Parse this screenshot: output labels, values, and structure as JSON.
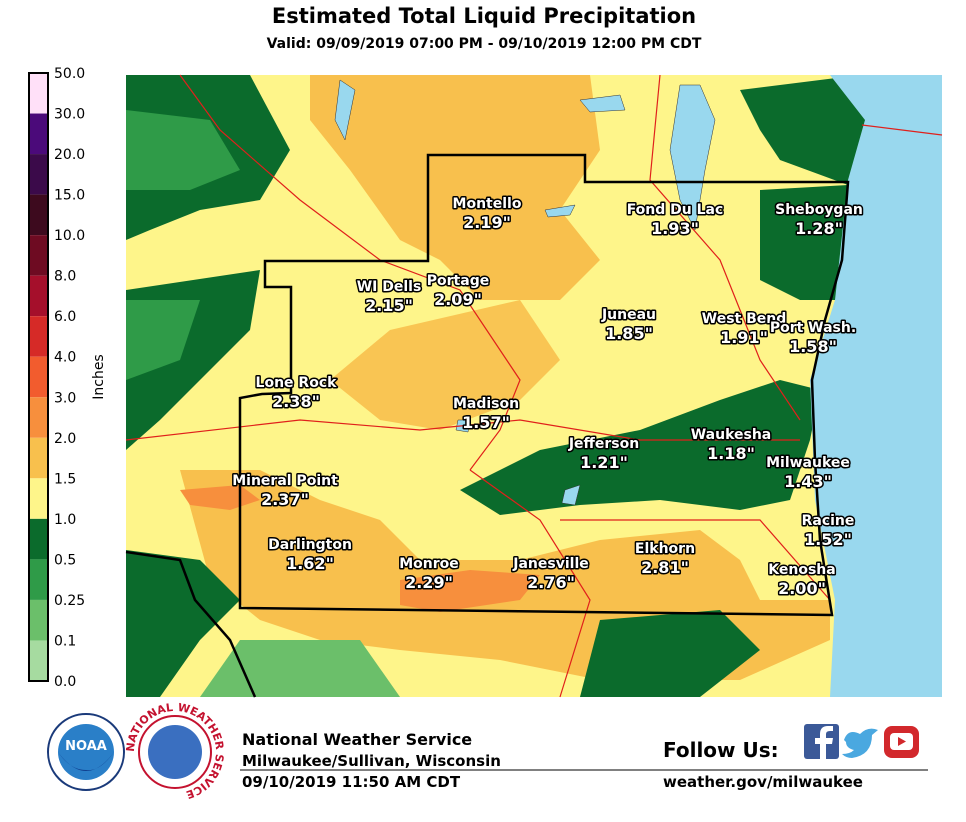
{
  "header": {
    "title": "Estimated Total Liquid Precipitation",
    "subtitle": "Valid: 09/09/2019 07:00 PM - 09/10/2019 12:00 PM CDT"
  },
  "legend": {
    "title": "Inches",
    "labels": [
      "50.0",
      "30.0",
      "20.0",
      "15.0",
      "10.0",
      "8.0",
      "6.0",
      "4.0",
      "3.0",
      "2.0",
      "1.5",
      "1.0",
      "0.5",
      "0.25",
      "0.1",
      "0.0"
    ]
  },
  "cities": [
    {
      "name": "Montello",
      "amount": "2.19\""
    },
    {
      "name": "Fond Du Lac",
      "amount": "1.93\""
    },
    {
      "name": "Sheboygan",
      "amount": "1.28\""
    },
    {
      "name": "WI Dells",
      "amount": "2.15\""
    },
    {
      "name": "Portage",
      "amount": "2.09\""
    },
    {
      "name": "Juneau",
      "amount": "1.85\""
    },
    {
      "name": "West Bend",
      "amount": "1.91\""
    },
    {
      "name": "Port Wash.",
      "amount": "1.58\""
    },
    {
      "name": "Lone Rock",
      "amount": "2.38\""
    },
    {
      "name": "Madison",
      "amount": "1.57\""
    },
    {
      "name": "Jefferson",
      "amount": "1.21\""
    },
    {
      "name": "Waukesha",
      "amount": "1.18\""
    },
    {
      "name": "Milwaukee",
      "amount": "1.43\""
    },
    {
      "name": "Mineral Point",
      "amount": "2.37\""
    },
    {
      "name": "Racine",
      "amount": "1.52\""
    },
    {
      "name": "Darlington",
      "amount": "1.62\""
    },
    {
      "name": "Monroe",
      "amount": "2.29\""
    },
    {
      "name": "Janesville",
      "amount": "2.76\""
    },
    {
      "name": "Elkhorn",
      "amount": "2.81\""
    },
    {
      "name": "Kenosha",
      "amount": "2.00\""
    }
  ],
  "footer": {
    "logo_noaa": "NOAA",
    "logo_nws": "NATIONAL WEATHER SERVICE",
    "office": "National Weather Service",
    "location": "Milwaukee/Sullivan, Wisconsin",
    "issued": "09/10/2019 11:50 AM CDT",
    "follow": "Follow Us:",
    "url": "weather.gov/milwaukee"
  }
}
